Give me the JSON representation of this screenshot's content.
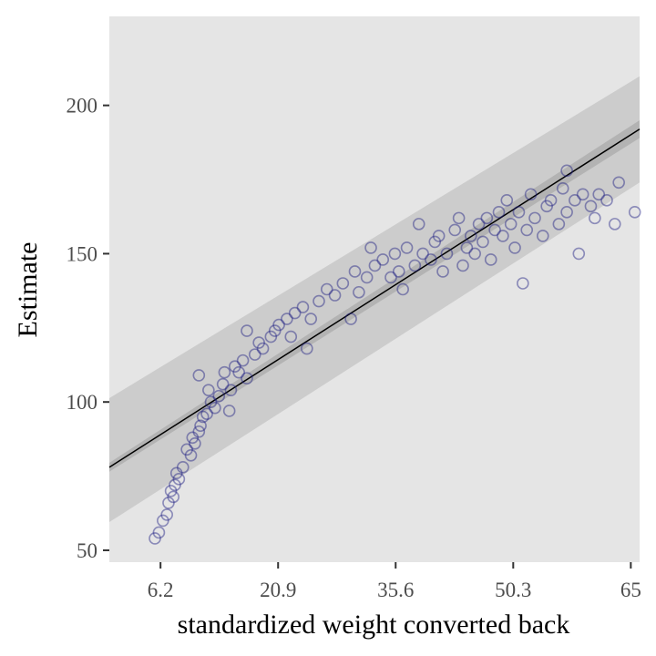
{
  "chart_data": {
    "type": "scatter",
    "xlabel": "standardized weight converted back",
    "ylabel": "Estimate",
    "xlim": [
      -0.2,
      66.1
    ],
    "ylim": [
      46,
      230
    ],
    "xticks": [
      6.2,
      20.9,
      35.6,
      50.3,
      65
    ],
    "yticks": [
      50,
      100,
      150,
      200
    ],
    "color": "#1a1a80",
    "grid": false,
    "bands": [
      {
        "color": "#cccccc",
        "x": [
          -0.2,
          66.1
        ],
        "lower": [
          59.5,
          174
        ],
        "upper": [
          101.3,
          209.8
        ]
      },
      {
        "color": "#b3b3b3",
        "x": [
          -0.2,
          66.1
        ],
        "lower": [
          76.5,
          189
        ],
        "upper": [
          79.5,
          195
        ]
      }
    ],
    "line": {
      "color": "#000000",
      "x": [
        -0.2,
        66.1
      ],
      "y": [
        78,
        192
      ]
    },
    "x": [
      5.5,
      6,
      6.5,
      7,
      7.2,
      7.5,
      7.8,
      8,
      8.2,
      8.5,
      9,
      9.5,
      10,
      10.2,
      10.5,
      11,
      11.2,
      11.5,
      11,
      12,
      12.5,
      12.2,
      13,
      13.5,
      14,
      14.2,
      14.8,
      15,
      15.5,
      16,
      16.5,
      17,
      17,
      18,
      18.5,
      19,
      20,
      20.5,
      21,
      22,
      22.5,
      23,
      24,
      24.5,
      25,
      26,
      27,
      28,
      29,
      30,
      30.5,
      31,
      32,
      32.5,
      33,
      34,
      35,
      35.5,
      36,
      36.5,
      37,
      38,
      38.5,
      39,
      40,
      40.5,
      41,
      41.5,
      42,
      43,
      43.5,
      44,
      44.5,
      45,
      45.5,
      46,
      46.5,
      47,
      47.5,
      48,
      48.5,
      49,
      49.5,
      50,
      50.5,
      51,
      51.5,
      52,
      52.5,
      53,
      54,
      54.5,
      55,
      56,
      56.5,
      57,
      58,
      58.5,
      59,
      60,
      60.5,
      61,
      62,
      63,
      63.5,
      65.5,
      57
    ],
    "y": [
      54,
      56,
      60,
      62,
      66,
      70,
      68,
      72,
      76,
      74,
      78,
      84,
      82,
      88,
      86,
      90,
      92,
      95,
      109,
      96,
      100,
      104,
      98,
      102,
      106,
      110,
      97,
      104,
      112,
      110,
      114,
      108,
      124,
      116,
      120,
      118,
      122,
      124,
      126,
      128,
      122,
      130,
      132,
      118,
      128,
      134,
      138,
      136,
      140,
      128,
      144,
      137,
      142,
      152,
      146,
      148,
      142,
      150,
      144,
      138,
      152,
      146,
      160,
      150,
      148,
      154,
      156,
      144,
      150,
      158,
      162,
      146,
      152,
      156,
      150,
      160,
      154,
      162,
      148,
      158,
      164,
      156,
      168,
      160,
      152,
      164,
      140,
      158,
      170,
      162,
      156,
      166,
      168,
      160,
      172,
      164,
      168,
      150,
      170,
      166,
      162,
      170,
      168,
      160,
      174,
      164,
      178
    ]
  }
}
